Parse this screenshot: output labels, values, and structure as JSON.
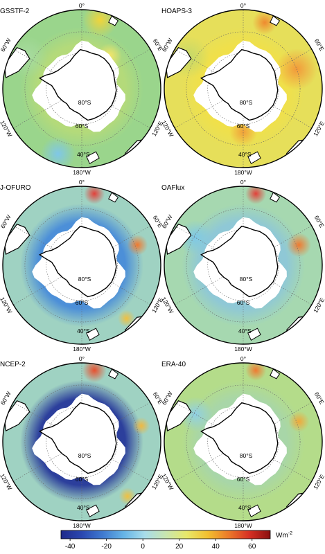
{
  "panels": [
    {
      "id": "gssstf",
      "title": "GSSTF-2",
      "field": {
        "base": "#9ad58c",
        "ring": "#b4da7a",
        "blobs": [
          {
            "a": 15,
            "r": 0.9,
            "s": 0.1,
            "c": "#f0d43a"
          },
          {
            "a": 40,
            "r": 0.55,
            "s": 0.07,
            "c": "#f3e56a"
          },
          {
            "a": 200,
            "r": 0.88,
            "s": 0.1,
            "c": "#7fc7e8"
          },
          {
            "a": 300,
            "r": 0.8,
            "s": 0.12,
            "c": "#a8dba0"
          }
        ]
      }
    },
    {
      "id": "hoaps",
      "title": "HOAPS-3",
      "field": {
        "base": "#e6df5a",
        "ring": "#f0e04a",
        "blobs": [
          {
            "a": 70,
            "r": 0.72,
            "s": 0.12,
            "c": "#f29a3a"
          },
          {
            "a": 18,
            "r": 0.88,
            "s": 0.07,
            "c": "#ef8a2f"
          },
          {
            "a": 180,
            "r": 0.55,
            "s": 0.08,
            "c": "#f0a03a"
          },
          {
            "a": 300,
            "r": 0.8,
            "s": 0.12,
            "c": "#c4d86a"
          }
        ]
      }
    },
    {
      "id": "jofuro",
      "title": "J-OFURO",
      "field": {
        "base": "#9fd2c2",
        "ring": "#4c8fd8",
        "blobs": [
          {
            "a": 10,
            "r": 0.92,
            "s": 0.06,
            "c": "#e2413a"
          },
          {
            "a": 70,
            "r": 0.75,
            "s": 0.06,
            "c": "#f07a30"
          },
          {
            "a": 140,
            "r": 0.88,
            "s": 0.05,
            "c": "#f0c040"
          }
        ]
      }
    },
    {
      "id": "oaflux",
      "title": "OAFlux",
      "field": {
        "base": "#a6d8b0",
        "ring": "#8fc8d6",
        "blobs": [
          {
            "a": 10,
            "r": 0.92,
            "s": 0.06,
            "c": "#e2413a"
          },
          {
            "a": 70,
            "r": 0.75,
            "s": 0.07,
            "c": "#f07a30"
          },
          {
            "a": 300,
            "r": 0.7,
            "s": 0.1,
            "c": "#7ec8e8"
          }
        ]
      }
    },
    {
      "id": "ncep",
      "title": "NCEP-2",
      "field": {
        "base": "#9fd2c2",
        "ring": "#2c3f9c",
        "blobs": [
          {
            "a": 10,
            "r": 0.92,
            "s": 0.07,
            "c": "#e8502f"
          },
          {
            "a": 75,
            "r": 0.78,
            "s": 0.05,
            "c": "#f0b840"
          },
          {
            "a": 140,
            "r": 0.9,
            "s": 0.05,
            "c": "#f0c040"
          }
        ]
      }
    },
    {
      "id": "era",
      "title": "ERA-40",
      "field": {
        "base": "#b4dc8a",
        "ring": "#a8d6a8",
        "blobs": [
          {
            "a": 10,
            "r": 0.92,
            "s": 0.06,
            "c": "#f07a30"
          },
          {
            "a": 70,
            "r": 0.75,
            "s": 0.06,
            "c": "#f0a83a"
          },
          {
            "a": 300,
            "r": 0.7,
            "s": 0.1,
            "c": "#8fcfe6"
          }
        ]
      }
    }
  ],
  "map_labels": {
    "lon_0": "0°",
    "lon_60e": "60°E",
    "lon_120e": "120°E",
    "lon_180w": "180°W",
    "lon_120w": "120°W",
    "lon_60w": "60°W",
    "lat_60s": "60°S",
    "lat_80s": "80°S",
    "lat_40s": "40°S"
  },
  "colorbar": {
    "ticks": [
      "-40",
      "-20",
      "0",
      "20",
      "40",
      "60"
    ],
    "unit": "Wm",
    "unit_exp": "-2",
    "colors": [
      "#1f2a8a",
      "#2a47b0",
      "#3f7ad0",
      "#66b4e6",
      "#a8dcea",
      "#c8e6b0",
      "#e8e86a",
      "#f2c030",
      "#ec7a2a",
      "#d63024",
      "#8a1010"
    ]
  }
}
